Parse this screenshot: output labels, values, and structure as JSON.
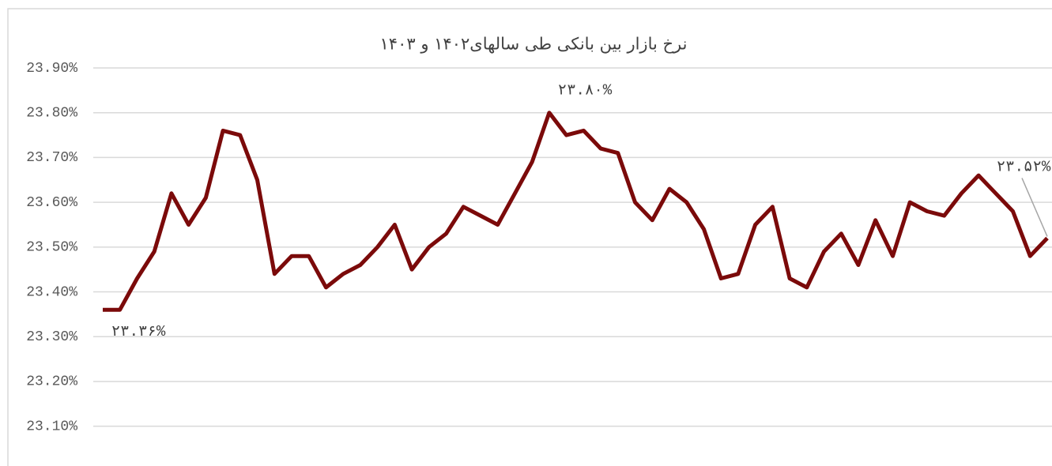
{
  "chart_data": {
    "type": "line",
    "title": "نرخ بازار بین بانکی طی سالهای۱۴۰۲ و ۱۴۰۳",
    "categories": [
      null,
      null,
      null,
      null,
      null,
      null,
      null,
      null,
      null,
      null,
      null,
      null,
      null,
      null,
      null,
      null,
      null,
      null,
      null,
      null,
      null,
      null,
      null,
      null,
      null,
      null,
      null,
      null,
      null,
      null,
      null,
      null,
      null,
      null,
      null,
      null,
      null,
      null,
      null,
      null,
      null,
      null,
      null,
      null,
      null,
      null,
      null,
      null,
      null,
      null,
      null,
      null,
      null,
      null,
      null,
      null
    ],
    "series": [
      {
        "name": null,
        "color": "#7b0a0a",
        "values": [
          23.36,
          23.36,
          23.43,
          23.49,
          23.62,
          23.55,
          23.61,
          23.76,
          23.75,
          23.65,
          23.44,
          23.48,
          23.48,
          23.41,
          23.44,
          23.46,
          23.5,
          23.55,
          23.45,
          23.5,
          23.53,
          23.59,
          23.57,
          23.55,
          23.62,
          23.69,
          23.8,
          23.75,
          23.76,
          23.72,
          23.71,
          23.6,
          23.56,
          23.63,
          23.6,
          23.54,
          23.43,
          23.44,
          23.55,
          23.59,
          23.43,
          23.41,
          23.49,
          23.53,
          23.46,
          23.56,
          23.48,
          23.6,
          23.58,
          23.57,
          23.62,
          23.66,
          23.62,
          23.58,
          23.48,
          23.52
        ],
        "value_labels": [
          "۲۳.۳۶%",
          null,
          null,
          null,
          null,
          null,
          null,
          null,
          null,
          null,
          null,
          null,
          null,
          null,
          null,
          null,
          null,
          null,
          null,
          null,
          null,
          null,
          null,
          null,
          null,
          null,
          "۲۳.۸۰%",
          null,
          null,
          null,
          null,
          null,
          null,
          null,
          null,
          null,
          null,
          null,
          null,
          null,
          null,
          null,
          null,
          null,
          null,
          null,
          null,
          null,
          null,
          null,
          null,
          null,
          null,
          null,
          null,
          "۲۳.۵۲%"
        ]
      }
    ],
    "ylim": [
      23.05,
      23.9
    ],
    "yticks": [
      {
        "value": 23.1,
        "label": "23.10%"
      },
      {
        "value": 23.2,
        "label": "23.20%"
      },
      {
        "value": 23.3,
        "label": "23.30%"
      },
      {
        "value": 23.4,
        "label": "23.40%"
      },
      {
        "value": 23.5,
        "label": "23.50%"
      },
      {
        "value": 23.6,
        "label": "23.60%"
      },
      {
        "value": 23.7,
        "label": "23.70%"
      },
      {
        "value": 23.8,
        "label": "23.80%"
      },
      {
        "value": 23.9,
        "label": "23.90%"
      }
    ],
    "grid": true
  }
}
